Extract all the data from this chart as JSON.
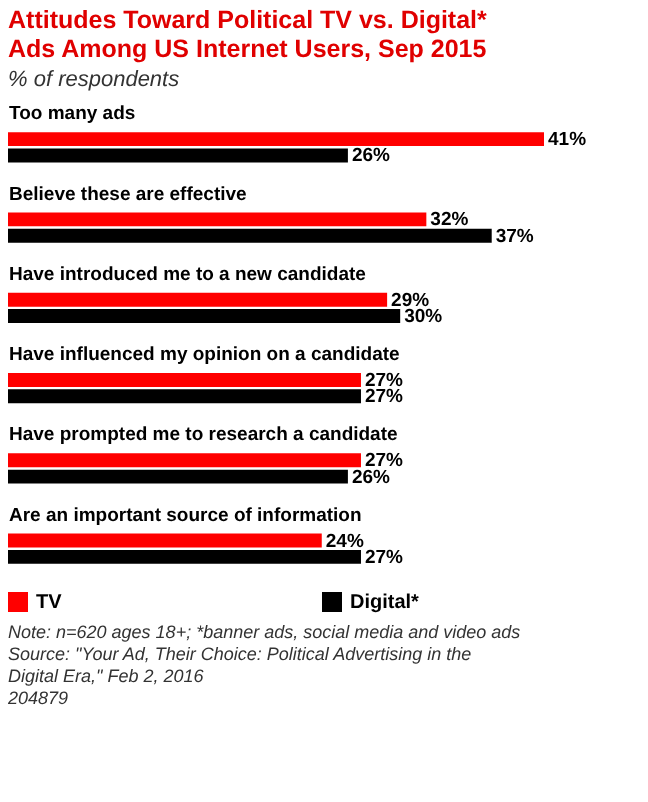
{
  "chart_data": {
    "type": "bar",
    "orientation": "horizontal",
    "title": "Attitudes Toward Political TV vs. Digital* Ads Among US Internet Users, Sep 2015",
    "subtitle": "% of respondents",
    "categories": [
      "Too many ads",
      "Believe these are effective",
      "Have introduced me to a new candidate",
      "Have influenced my opinion on a candidate",
      "Have prompted me to research a candidate",
      "Are an important source of information"
    ],
    "series": [
      {
        "name": "TV",
        "color": "#ff0000",
        "values": [
          41,
          32,
          29,
          27,
          27,
          24
        ],
        "value_labels": [
          "41%",
          "32%",
          "29%",
          "27%",
          "27%",
          "24%"
        ]
      },
      {
        "name": "Digital*",
        "color": "#000000",
        "values": [
          26,
          37,
          30,
          27,
          26,
          27
        ],
        "value_labels": [
          "26%",
          "37%",
          "30%",
          "27%",
          "26%",
          "27%"
        ]
      }
    ],
    "legend": "bottom",
    "annotations": [
      "Note: n=620 ages 18+; *banner ads, social media and video ads",
      "Source: \"Your Ad, Their Choice: Political Advertising in the Digital Era,\" Feb 2, 2016",
      "204879"
    ]
  }
}
